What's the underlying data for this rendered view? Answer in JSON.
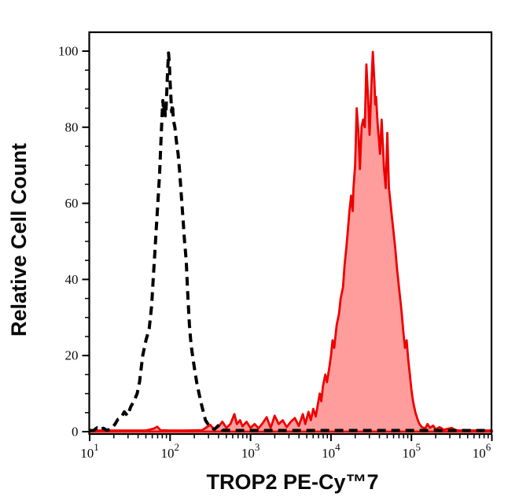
{
  "figure": {
    "background": "#ffffff",
    "frame_color": "#000000",
    "axis_color": "#000000"
  },
  "chart_data": {
    "type": "area",
    "subtype": "flow-cytometry-overlay-histogram",
    "title": "",
    "xlabel": "TROP2 PE-Cy™7",
    "ylabel": "Relative Cell Count",
    "x_scale": "log10",
    "xlim": [
      10,
      1000000
    ],
    "x_tick_exponents": [
      1,
      2,
      3,
      4,
      5,
      6
    ],
    "x_minor_mantissas": [
      2,
      3,
      4,
      5,
      6,
      7,
      8,
      9
    ],
    "ylim": [
      0,
      100
    ],
    "y_ticks": [
      0,
      20,
      40,
      60,
      80,
      100
    ],
    "y_minor_step": 5,
    "grid": false,
    "legend": "none",
    "series": [
      {
        "name": "red-filled-histogram",
        "style": {
          "stroke": "#ee0000",
          "width": 2.8,
          "dash": "",
          "fill": "#ff9d9d"
        },
        "points": [
          [
            1.0,
            0.3
          ],
          [
            1.4,
            0.3
          ],
          [
            1.7,
            0.3
          ],
          [
            1.8,
            0.8
          ],
          [
            1.84,
            1.3
          ],
          [
            1.88,
            0.4
          ],
          [
            2.0,
            0.3
          ],
          [
            2.2,
            0.3
          ],
          [
            2.4,
            0.4
          ],
          [
            2.5,
            1.8
          ],
          [
            2.55,
            0.5
          ],
          [
            2.6,
            1.3
          ],
          [
            2.65,
            2.6
          ],
          [
            2.7,
            1.0
          ],
          [
            2.75,
            2.0
          ],
          [
            2.8,
            4.6
          ],
          [
            2.83,
            2.0
          ],
          [
            2.87,
            3.0
          ],
          [
            2.9,
            1.4
          ],
          [
            2.95,
            2.6
          ],
          [
            3.0,
            1.0
          ],
          [
            3.05,
            2.0
          ],
          [
            3.1,
            0.9
          ],
          [
            3.15,
            2.2
          ],
          [
            3.2,
            3.8
          ],
          [
            3.25,
            1.0
          ],
          [
            3.3,
            4.2
          ],
          [
            3.35,
            2.0
          ],
          [
            3.4,
            3.0
          ],
          [
            3.45,
            1.2
          ],
          [
            3.5,
            2.6
          ],
          [
            3.55,
            3.6
          ],
          [
            3.6,
            1.5
          ],
          [
            3.65,
            4.6
          ],
          [
            3.68,
            2.0
          ],
          [
            3.72,
            5.2
          ],
          [
            3.75,
            3.0
          ],
          [
            3.78,
            6.0
          ],
          [
            3.81,
            4.0
          ],
          [
            3.84,
            7.5
          ],
          [
            3.86,
            10
          ],
          [
            3.88,
            8
          ],
          [
            3.9,
            12
          ],
          [
            3.93,
            15
          ],
          [
            3.95,
            13
          ],
          [
            3.98,
            17
          ],
          [
            4.0,
            20
          ],
          [
            4.02,
            24
          ],
          [
            4.04,
            22
          ],
          [
            4.07,
            28
          ],
          [
            4.1,
            31
          ],
          [
            4.12,
            35
          ],
          [
            4.15,
            38
          ],
          [
            4.17,
            44
          ],
          [
            4.19,
            48
          ],
          [
            4.21,
            53
          ],
          [
            4.23,
            58
          ],
          [
            4.25,
            62
          ],
          [
            4.27,
            58
          ],
          [
            4.28,
            64
          ],
          [
            4.3,
            70
          ],
          [
            4.32,
            85
          ],
          [
            4.34,
            79
          ],
          [
            4.36,
            69
          ],
          [
            4.38,
            80
          ],
          [
            4.4,
            82
          ],
          [
            4.42,
            80
          ],
          [
            4.44,
            96.5
          ],
          [
            4.46,
            88
          ],
          [
            4.48,
            78
          ],
          [
            4.5,
            90
          ],
          [
            4.52,
            99.8
          ],
          [
            4.54,
            92
          ],
          [
            4.55,
            86
          ],
          [
            4.56,
            88
          ],
          [
            4.58,
            81
          ],
          [
            4.61,
            73
          ],
          [
            4.63,
            82
          ],
          [
            4.66,
            69
          ],
          [
            4.68,
            64
          ],
          [
            4.7,
            78.5
          ],
          [
            4.72,
            64
          ],
          [
            4.74,
            60
          ],
          [
            4.76,
            56
          ],
          [
            4.78,
            52
          ],
          [
            4.8,
            48
          ],
          [
            4.82,
            43
          ],
          [
            4.84,
            39
          ],
          [
            4.86,
            35
          ],
          [
            4.88,
            31
          ],
          [
            4.9,
            26
          ],
          [
            4.92,
            22
          ],
          [
            4.94,
            24
          ],
          [
            4.96,
            19
          ],
          [
            4.98,
            15
          ],
          [
            5.0,
            11
          ],
          [
            5.02,
            8
          ],
          [
            5.05,
            5
          ],
          [
            5.08,
            3
          ],
          [
            5.1,
            2
          ],
          [
            5.13,
            1.2
          ],
          [
            5.17,
            0.8
          ],
          [
            5.2,
            2.0
          ],
          [
            5.23,
            1.0
          ],
          [
            5.27,
            1.6
          ],
          [
            5.3,
            0.6
          ],
          [
            5.35,
            1.2
          ],
          [
            5.4,
            0.5
          ],
          [
            5.5,
            1.0
          ],
          [
            5.55,
            0.4
          ],
          [
            5.6,
            0.3
          ],
          [
            5.8,
            0.3
          ],
          [
            6.0,
            0.3
          ]
        ]
      },
      {
        "name": "black-dashed-histogram",
        "style": {
          "stroke": "#000000",
          "width": 4,
          "dash": "11 7",
          "fill": "none"
        },
        "points": [
          [
            1.0,
            0.3
          ],
          [
            1.05,
            0.3
          ],
          [
            1.09,
            1.0
          ],
          [
            1.13,
            0.4
          ],
          [
            1.17,
            0.9
          ],
          [
            1.21,
            0.4
          ],
          [
            1.26,
            0.6
          ],
          [
            1.31,
            1.8
          ],
          [
            1.35,
            3.2
          ],
          [
            1.39,
            3.6
          ],
          [
            1.43,
            5.2
          ],
          [
            1.47,
            4.2
          ],
          [
            1.51,
            6.5
          ],
          [
            1.55,
            8.0
          ],
          [
            1.59,
            10
          ],
          [
            1.62,
            13
          ],
          [
            1.66,
            20
          ],
          [
            1.7,
            24
          ],
          [
            1.74,
            27
          ],
          [
            1.77,
            33
          ],
          [
            1.79,
            40
          ],
          [
            1.81,
            47
          ],
          [
            1.83,
            54
          ],
          [
            1.85,
            61
          ],
          [
            1.87,
            68
          ],
          [
            1.88,
            73
          ],
          [
            1.89,
            78
          ],
          [
            1.9,
            83
          ],
          [
            1.91,
            87
          ],
          [
            1.92,
            84
          ],
          [
            1.93,
            86.5
          ],
          [
            1.94,
            83
          ],
          [
            1.95,
            85
          ],
          [
            1.96,
            90
          ],
          [
            1.97,
            95
          ],
          [
            1.98,
            99.5
          ],
          [
            1.99,
            97
          ],
          [
            2.0,
            92
          ],
          [
            2.01,
            88
          ],
          [
            2.02,
            84
          ],
          [
            2.03,
            86
          ],
          [
            2.04,
            82
          ],
          [
            2.06,
            80
          ],
          [
            2.08,
            76
          ],
          [
            2.1,
            73
          ],
          [
            2.12,
            68
          ],
          [
            2.14,
            62
          ],
          [
            2.16,
            56
          ],
          [
            2.18,
            50
          ],
          [
            2.2,
            45
          ],
          [
            2.22,
            36
          ],
          [
            2.24,
            28
          ],
          [
            2.26,
            23
          ],
          [
            2.28,
            20
          ],
          [
            2.3,
            17
          ],
          [
            2.33,
            13
          ],
          [
            2.35,
            11
          ],
          [
            2.38,
            8
          ],
          [
            2.41,
            5.5
          ],
          [
            2.44,
            3
          ],
          [
            2.47,
            2
          ],
          [
            2.5,
            1.2
          ],
          [
            2.55,
            0.6
          ],
          [
            2.61,
            1.8
          ],
          [
            2.65,
            0.4
          ],
          [
            2.8,
            0.3
          ],
          [
            3.2,
            0.3
          ],
          [
            3.6,
            0.3
          ],
          [
            4.0,
            0.3
          ],
          [
            4.4,
            0.3
          ],
          [
            4.8,
            0.3
          ],
          [
            5.2,
            0.3
          ],
          [
            5.6,
            0.3
          ],
          [
            6.0,
            0.3
          ]
        ]
      }
    ]
  }
}
